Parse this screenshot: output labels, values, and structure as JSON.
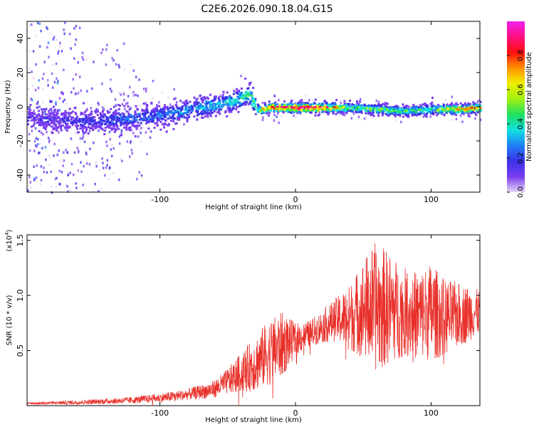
{
  "title": "C2E6.2026.090.18.04.G15",
  "chart_data": [
    {
      "type": "heatmap",
      "name": "spectrogram",
      "xlabel": "Height of straight line (km)",
      "ylabel": "Frequency (Hz)",
      "xlim": [
        -198,
        136
      ],
      "ylim": [
        -50,
        50
      ],
      "x_ticks": [
        -100,
        0,
        100
      ],
      "x_tick_labels": [
        "-100",
        "0",
        "100"
      ],
      "y_ticks": [
        -40,
        -20,
        0,
        20,
        40
      ],
      "y_tick_labels": [
        "-40",
        "-20",
        "0",
        "20",
        "40"
      ],
      "colorbar": {
        "label": "Normalized spectral amplitude",
        "range": [
          0.0,
          1.0
        ],
        "ticks": [
          0.0,
          0.2,
          0.4,
          0.6,
          0.8
        ],
        "tick_labels": [
          "0.0",
          "0.2",
          "0.4",
          "0.6",
          "0.8"
        ],
        "colors": [
          "#e6d6f7",
          "#7a3df0",
          "#3b32e8",
          "#1f7ff5",
          "#12e0e0",
          "#20e060",
          "#a0f010",
          "#f0f000",
          "#ff9000",
          "#ff1010",
          "#ff1080",
          "#f020f0"
        ]
      },
      "ridge": {
        "x": [
          -198,
          -160,
          -130,
          -110,
          -90,
          -70,
          -50,
          -40,
          -35,
          -30,
          -27,
          -25,
          -20,
          -10,
          0,
          20,
          40,
          60,
          80,
          100,
          120,
          136
        ],
        "y": [
          -6,
          -8,
          -7,
          -5,
          -3,
          0,
          3,
          6,
          8,
          1,
          -2,
          -1,
          0,
          0,
          0,
          0,
          0,
          -1,
          -2,
          -1,
          -1,
          0
        ],
        "amplitude": [
          0.15,
          0.2,
          0.25,
          0.28,
          0.3,
          0.35,
          0.4,
          0.45,
          0.5,
          0.55,
          0.6,
          0.7,
          0.8,
          0.85,
          0.9,
          0.88,
          0.5,
          0.55,
          0.5,
          0.5,
          0.7,
          0.75
        ]
      }
    },
    {
      "type": "line",
      "name": "snr",
      "xlabel": "Height of straight line (km)",
      "ylabel": "SNR (10 * v/v)",
      "exponent_label": "(x10",
      "exponent_power": "4",
      "exponent_close": ")",
      "xlim": [
        -198,
        136
      ],
      "ylim": [
        0,
        1.55
      ],
      "x_ticks": [
        -100,
        0,
        100
      ],
      "x_tick_labels": [
        "-100",
        "0",
        "100"
      ],
      "y_ticks": [
        0.5,
        1.0,
        1.5
      ],
      "y_tick_labels": [
        "0.5",
        "1.0",
        "1.5"
      ],
      "line_color": "#e8302a",
      "envelope": {
        "x": [
          -198,
          -160,
          -120,
          -100,
          -80,
          -60,
          -50,
          -40,
          -30,
          -20,
          -10,
          0,
          10,
          20,
          30,
          40,
          50,
          60,
          70,
          80,
          90,
          100,
          110,
          120,
          136
        ],
        "y": [
          0.02,
          0.03,
          0.05,
          0.07,
          0.1,
          0.15,
          0.22,
          0.3,
          0.38,
          0.48,
          0.55,
          0.6,
          0.65,
          0.72,
          0.78,
          0.8,
          0.88,
          0.9,
          0.88,
          0.85,
          0.82,
          0.85,
          0.8,
          0.82,
          0.85
        ],
        "noise": [
          0.01,
          0.02,
          0.03,
          0.04,
          0.05,
          0.08,
          0.12,
          0.18,
          0.25,
          0.3,
          0.3,
          0.15,
          0.12,
          0.15,
          0.2,
          0.3,
          0.45,
          0.6,
          0.5,
          0.4,
          0.4,
          0.45,
          0.35,
          0.3,
          0.2
        ]
      }
    }
  ]
}
